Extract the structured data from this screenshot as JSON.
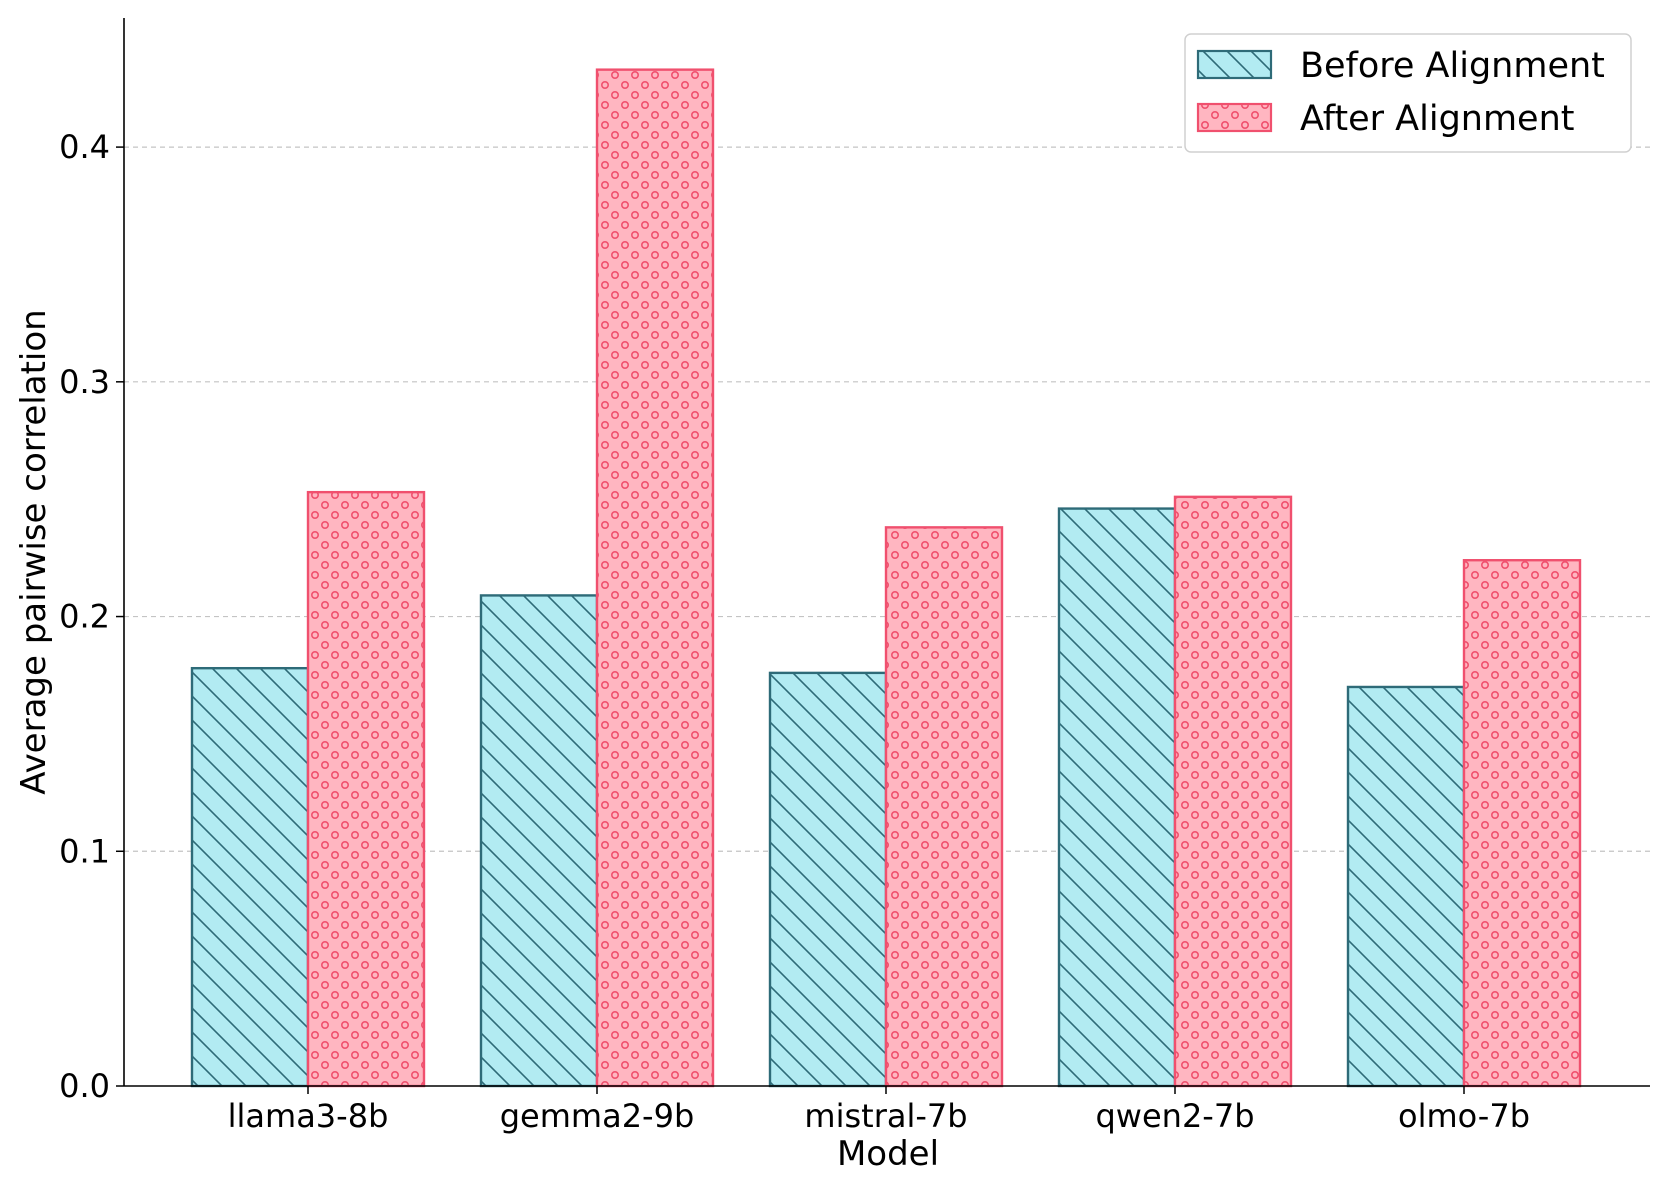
{
  "chart_data": {
    "type": "bar",
    "title": "",
    "xlabel": "Model",
    "ylabel": "Average pairwise correlation",
    "categories": [
      "llama3-8b",
      "gemma2-9b",
      "mistral-7b",
      "qwen2-7b",
      "olmo-7b"
    ],
    "series": [
      {
        "name": "Before Alignment",
        "values": [
          0.178,
          0.209,
          0.176,
          0.246,
          0.17
        ],
        "fill": "#b2ebf2",
        "edge": "#2e6b78",
        "hatch": "diagonal"
      },
      {
        "name": "After Alignment",
        "values": [
          0.253,
          0.433,
          0.238,
          0.251,
          0.224
        ],
        "fill": "#ffb6c1",
        "edge": "#f0506e",
        "hatch": "circles"
      }
    ],
    "ylim": [
      0,
      0.455
    ],
    "yticks": [
      "0.0",
      "0.1",
      "0.2",
      "0.3",
      "0.4"
    ],
    "grid": "y-dashed",
    "legend_position": "top-right"
  }
}
